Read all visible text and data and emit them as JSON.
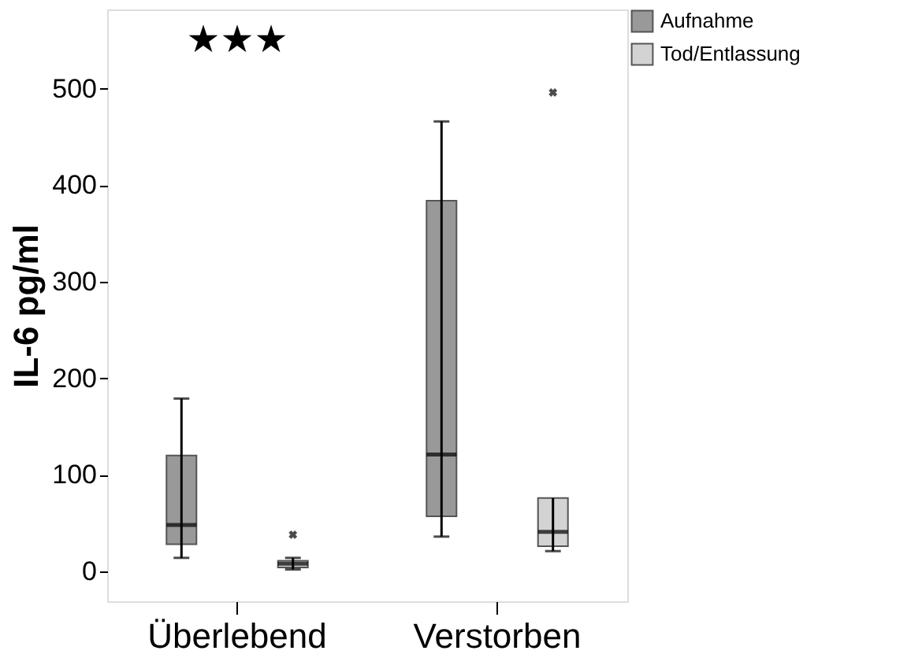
{
  "chart_data": {
    "type": "box",
    "ylabel": "IL-6 pg/ml",
    "categories": [
      "Überlebend",
      "Verstorben"
    ],
    "ylim": [
      -31,
      582
    ],
    "yticks": [
      0,
      100,
      200,
      300,
      400,
      500
    ],
    "grid": false,
    "legend": "top right",
    "series": [
      {
        "name": "Aufnahme",
        "color": "#999999",
        "boxes": [
          {
            "low": 14,
            "q1": 28,
            "median": 48,
            "q3": 120,
            "high": 179
          },
          {
            "low": 36,
            "q1": 57,
            "median": 121,
            "q3": 384,
            "high": 466
          }
        ]
      },
      {
        "name": "Tod/Entlassung",
        "color": "#d3d3d3",
        "boxes": [
          {
            "low": 2,
            "q1": 4,
            "median": 8,
            "q3": 11,
            "high": 14,
            "outliers": [
              38
            ]
          },
          {
            "low": 21,
            "q1": 26,
            "median": 41,
            "q3": 76,
            "high": 76,
            "outliers": [
              496
            ]
          }
        ]
      }
    ],
    "annotations": [
      "★★★"
    ]
  }
}
